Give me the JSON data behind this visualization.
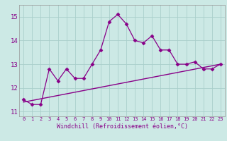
{
  "x": [
    0,
    1,
    2,
    3,
    4,
    5,
    6,
    7,
    8,
    9,
    10,
    11,
    12,
    13,
    14,
    15,
    16,
    17,
    18,
    19,
    20,
    21,
    22,
    23
  ],
  "y_line": [
    11.5,
    11.3,
    11.3,
    12.8,
    12.3,
    12.8,
    12.4,
    12.4,
    13.0,
    13.6,
    14.8,
    15.1,
    14.7,
    14.0,
    13.9,
    14.2,
    13.6,
    13.6,
    13.0,
    13.0,
    13.1,
    12.8,
    12.8,
    13.0
  ],
  "y_trend_start": 11.4,
  "y_trend_end": 13.0,
  "background_color": "#cce9e5",
  "grid_color": "#aacfcb",
  "line_color": "#880088",
  "trend_color": "#880088",
  "marker_color": "#880088",
  "xlabel": "Windchill (Refroidissement éolien,°C)",
  "yticks": [
    11,
    12,
    13,
    14,
    15
  ],
  "xticks": [
    0,
    1,
    2,
    3,
    4,
    5,
    6,
    7,
    8,
    9,
    10,
    11,
    12,
    13,
    14,
    15,
    16,
    17,
    18,
    19,
    20,
    21,
    22,
    23
  ],
  "ylim": [
    10.8,
    15.5
  ],
  "xlim": [
    -0.5,
    23.5
  ]
}
